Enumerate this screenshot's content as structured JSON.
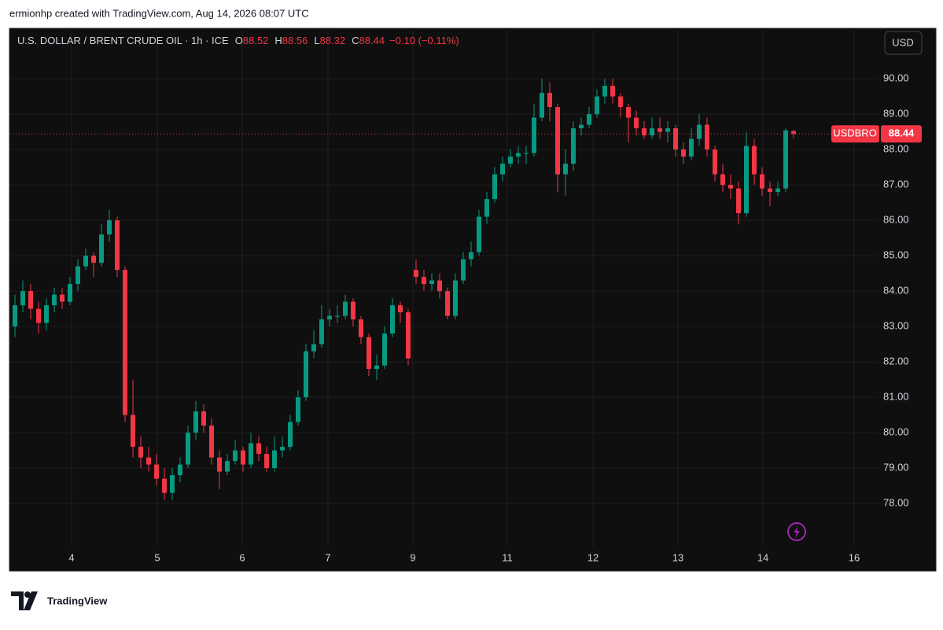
{
  "header": {
    "creator": "ermionhp created with TradingView.com, Aug 14, 2026 08:07 UTC"
  },
  "chart_data": {
    "type": "candlestick",
    "title": "U.S. DOLLAR / BRENT CRUDE OIL · 1h · ICE",
    "ohlc_labels": [
      "O",
      "H",
      "L",
      "C"
    ],
    "change": "−0.10 (−0.11%)",
    "currency": "USD",
    "series": [
      {
        "name": "USDBRO",
        "up_color": "#089981",
        "down_color": "#f23645",
        "open": [
          83.0,
          83.6,
          84.0,
          83.5,
          83.1,
          83.6,
          83.9,
          83.7,
          84.2,
          84.7,
          85.0,
          84.8,
          85.6,
          86.0,
          84.6,
          80.5,
          79.6,
          79.3,
          79.1,
          78.7,
          78.3,
          78.8,
          79.1,
          80.0,
          80.6,
          80.2,
          79.3,
          78.9,
          79.2,
          79.5,
          79.1,
          79.7,
          79.4,
          79.0,
          79.5,
          79.6,
          80.3,
          81.0,
          82.3,
          82.5,
          83.2,
          83.3,
          83.3,
          83.7,
          83.2,
          82.7,
          81.8,
          81.9,
          82.8,
          83.6,
          83.4,
          84.6,
          84.4,
          84.2,
          84.3,
          84.0,
          83.3,
          84.3,
          84.9,
          85.1,
          86.1,
          86.6,
          87.3,
          87.6,
          87.8,
          87.9,
          87.9,
          88.9,
          89.6,
          89.2,
          87.3,
          87.6,
          88.6,
          88.7,
          89.0,
          89.5,
          89.8,
          89.5,
          89.2,
          88.9,
          88.6,
          88.4,
          88.6,
          88.5,
          88.6,
          88.0,
          87.8,
          88.3,
          88.7,
          88.0,
          87.3,
          87.0,
          86.9,
          86.2,
          88.1,
          87.3,
          86.9,
          86.8,
          86.9,
          88.52
        ],
        "high": [
          83.9,
          84.3,
          84.2,
          83.7,
          83.8,
          84.1,
          84.1,
          84.4,
          84.9,
          85.2,
          85.1,
          85.9,
          86.3,
          86.1,
          84.7,
          81.5,
          79.9,
          79.6,
          79.4,
          79.0,
          79.0,
          79.3,
          80.2,
          80.9,
          80.8,
          80.4,
          79.5,
          79.4,
          79.8,
          79.6,
          80.0,
          79.9,
          79.6,
          79.9,
          79.9,
          80.5,
          81.2,
          82.5,
          82.9,
          83.6,
          83.5,
          83.6,
          83.9,
          83.8,
          83.3,
          82.8,
          82.2,
          83.0,
          83.8,
          83.7,
          83.5,
          84.9,
          84.6,
          84.5,
          84.5,
          84.1,
          84.5,
          85.1,
          85.4,
          86.3,
          86.8,
          87.5,
          87.8,
          88.0,
          88.1,
          88.1,
          89.3,
          90.0,
          89.9,
          89.3,
          88.0,
          88.8,
          88.9,
          89.2,
          89.7,
          90.0,
          90.0,
          89.6,
          89.3,
          89.1,
          88.8,
          88.9,
          88.9,
          88.8,
          88.7,
          88.2,
          88.6,
          89.0,
          88.9,
          88.1,
          87.6,
          87.3,
          87.1,
          88.5,
          88.3,
          87.5,
          87.1,
          87.1,
          88.6,
          88.56
        ],
        "low": [
          82.7,
          83.4,
          83.2,
          82.8,
          82.9,
          83.4,
          83.5,
          83.6,
          84.0,
          84.6,
          84.4,
          84.7,
          85.4,
          84.4,
          80.3,
          79.3,
          79.0,
          78.9,
          78.5,
          78.1,
          78.1,
          78.6,
          79.0,
          79.8,
          80.0,
          79.1,
          78.4,
          78.8,
          79.1,
          78.9,
          79.0,
          79.2,
          78.9,
          78.9,
          79.3,
          79.5,
          80.2,
          80.9,
          82.1,
          82.4,
          83.0,
          83.1,
          83.2,
          83.0,
          82.5,
          81.6,
          81.5,
          81.8,
          82.7,
          83.1,
          81.9,
          84.2,
          84.0,
          84.0,
          83.8,
          83.2,
          83.2,
          84.2,
          84.7,
          85.0,
          85.9,
          86.5,
          87.1,
          87.5,
          87.6,
          87.6,
          87.8,
          88.8,
          88.8,
          86.8,
          86.7,
          87.4,
          88.4,
          88.6,
          88.9,
          89.3,
          89.3,
          88.9,
          88.2,
          88.4,
          88.3,
          88.3,
          88.3,
          88.2,
          87.8,
          87.6,
          87.7,
          88.1,
          87.8,
          87.1,
          86.8,
          86.6,
          85.9,
          86.1,
          87.0,
          86.7,
          86.4,
          86.7,
          86.8,
          88.32
        ],
        "close": [
          83.6,
          84.0,
          83.5,
          83.1,
          83.6,
          83.9,
          83.7,
          84.2,
          84.7,
          85.0,
          84.8,
          85.6,
          86.0,
          84.6,
          80.5,
          79.6,
          79.3,
          79.1,
          78.7,
          78.3,
          78.8,
          79.1,
          80.0,
          80.6,
          80.2,
          79.3,
          78.9,
          79.2,
          79.5,
          79.1,
          79.7,
          79.4,
          79.0,
          79.5,
          79.6,
          80.3,
          81.0,
          82.3,
          82.5,
          83.2,
          83.3,
          83.3,
          83.7,
          83.2,
          82.7,
          81.8,
          81.9,
          82.8,
          83.6,
          83.4,
          82.1,
          84.4,
          84.2,
          84.3,
          84.0,
          83.3,
          84.3,
          84.9,
          85.1,
          86.1,
          86.6,
          87.3,
          87.6,
          87.8,
          87.9,
          87.9,
          88.9,
          89.6,
          89.2,
          87.3,
          87.6,
          88.6,
          88.7,
          89.0,
          89.5,
          89.8,
          89.5,
          89.2,
          88.9,
          88.6,
          88.4,
          88.6,
          88.5,
          88.6,
          88.0,
          87.8,
          88.3,
          88.7,
          88.0,
          87.3,
          87.0,
          86.9,
          86.2,
          88.1,
          87.3,
          86.9,
          86.8,
          86.9,
          88.54,
          88.44
        ]
      }
    ],
    "xlim": [
      -0.7,
      109.7
    ],
    "xticks": [
      {
        "value": 7.2,
        "label": "4"
      },
      {
        "value": 18.1,
        "label": "5"
      },
      {
        "value": 28.9,
        "label": "6"
      },
      {
        "value": 39.8,
        "label": "7"
      },
      {
        "value": 50.6,
        "label": "9"
      },
      {
        "value": 62.6,
        "label": "11"
      },
      {
        "value": 73.5,
        "label": "12"
      },
      {
        "value": 84.3,
        "label": "13"
      },
      {
        "value": 95.1,
        "label": "14"
      },
      {
        "value": 106.7,
        "label": "16"
      }
    ],
    "ylim": [
      76.78,
      91.38
    ],
    "yticks": [
      {
        "value": 78,
        "label": "78.00"
      },
      {
        "value": 79,
        "label": "79.00"
      },
      {
        "value": 80,
        "label": "80.00"
      },
      {
        "value": 81,
        "label": "81.00"
      },
      {
        "value": 82,
        "label": "82.00"
      },
      {
        "value": 83,
        "label": "83.00"
      },
      {
        "value": 84,
        "label": "84.00"
      },
      {
        "value": 85,
        "label": "85.00"
      },
      {
        "value": 86,
        "label": "86.00"
      },
      {
        "value": 87,
        "label": "87.00"
      },
      {
        "value": 88,
        "label": "88.00"
      },
      {
        "value": 89,
        "label": "89.00"
      },
      {
        "value": 90,
        "label": "90.00"
      }
    ],
    "grid": true,
    "last_price_line": true
  },
  "footer": {
    "brand": "TradingView"
  }
}
